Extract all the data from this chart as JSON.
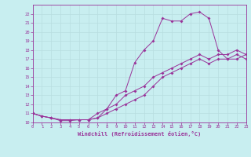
{
  "xlabel": "Windchill (Refroidissement éolien,°C)",
  "xlim": [
    0,
    23
  ],
  "ylim": [
    10,
    23
  ],
  "xticks": [
    0,
    1,
    2,
    3,
    4,
    5,
    6,
    7,
    8,
    9,
    10,
    11,
    12,
    13,
    14,
    15,
    16,
    17,
    18,
    19,
    20,
    21,
    22,
    23
  ],
  "yticks": [
    10,
    11,
    12,
    13,
    14,
    15,
    16,
    17,
    18,
    19,
    20,
    21,
    22
  ],
  "bg_color": "#c8eef0",
  "line_color": "#993399",
  "grid_color": "#b8dde0",
  "line1_x": [
    0,
    1,
    2,
    3,
    4,
    5,
    6,
    7,
    8,
    9,
    10,
    11,
    12,
    13,
    14,
    15,
    16,
    17,
    18,
    19,
    20,
    21,
    22,
    23
  ],
  "line1_y": [
    11.0,
    10.7,
    10.5,
    10.2,
    10.2,
    10.3,
    10.3,
    11.0,
    11.5,
    13.0,
    13.5,
    16.6,
    18.0,
    19.0,
    21.5,
    21.2,
    21.2,
    22.0,
    22.2,
    21.5,
    18.0,
    17.0,
    17.0,
    17.5
  ],
  "line2_x": [
    0,
    1,
    2,
    3,
    4,
    5,
    6,
    7,
    8,
    9,
    10,
    11,
    12,
    13,
    14,
    15,
    16,
    17,
    18,
    19,
    20,
    21,
    22,
    23
  ],
  "line2_y": [
    11.0,
    10.7,
    10.5,
    10.3,
    10.3,
    10.3,
    10.3,
    10.5,
    11.5,
    12.0,
    13.0,
    13.5,
    14.0,
    15.0,
    15.5,
    16.0,
    16.5,
    17.0,
    17.5,
    17.0,
    17.5,
    17.5,
    18.0,
    17.5
  ],
  "line3_x": [
    0,
    1,
    2,
    3,
    4,
    5,
    6,
    7,
    8,
    9,
    10,
    11,
    12,
    13,
    14,
    15,
    16,
    17,
    18,
    19,
    20,
    21,
    22,
    23
  ],
  "line3_y": [
    11.0,
    10.7,
    10.5,
    10.3,
    10.3,
    10.3,
    10.3,
    10.5,
    11.0,
    11.5,
    12.0,
    12.5,
    13.0,
    14.0,
    15.0,
    15.5,
    16.0,
    16.5,
    17.0,
    16.5,
    17.0,
    17.0,
    17.5,
    17.0
  ]
}
